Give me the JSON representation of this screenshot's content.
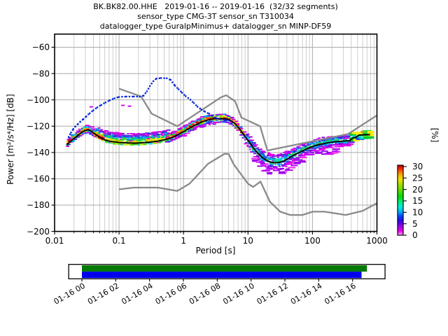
{
  "title": {
    "line1": "BK.BK82.00.HHE   2019-01-16 -- 2019-01-16  (32/32 segments)",
    "line2": "sensor_type CMG-3T sensor_sn T310034",
    "line3": "datalogger_type GuralpMinimus+ datalogger_sn MINP-DF59"
  },
  "chart_data": {
    "type": "heatmap",
    "title": "BK.BK82.00.HHE   2019-01-16 -- 2019-01-16  (32/32 segments)",
    "xlabel": "Period [s]",
    "ylabel": "Power [m²/s⁴/Hz] [dB]",
    "colorbar_label": "[%]",
    "xscale": "log",
    "xlim": [
      0.01,
      1000
    ],
    "ylim": [
      -200,
      -50
    ],
    "grid": true,
    "xticks": [
      {
        "v": 0.01,
        "label": "0.01"
      },
      {
        "v": 0.1,
        "label": "0.1"
      },
      {
        "v": 1,
        "label": "1"
      },
      {
        "v": 10,
        "label": "10"
      },
      {
        "v": 100,
        "label": "100"
      },
      {
        "v": 1000,
        "label": "1000"
      }
    ],
    "yticks": [
      {
        "v": -60,
        "label": "−60"
      },
      {
        "v": -80,
        "label": "−80"
      },
      {
        "v": -100,
        "label": "−100"
      },
      {
        "v": -120,
        "label": "−120"
      },
      {
        "v": -140,
        "label": "−140"
      },
      {
        "v": -160,
        "label": "−160"
      },
      {
        "v": -180,
        "label": "−180"
      },
      {
        "v": -200,
        "label": "−200"
      }
    ],
    "colorbar_ticks": [
      {
        "v": 0,
        "label": "0"
      },
      {
        "v": 5,
        "label": "5"
      },
      {
        "v": 10,
        "label": "10"
      },
      {
        "v": 15,
        "label": "15"
      },
      {
        "v": 20,
        "label": "20"
      },
      {
        "v": 25,
        "label": "25"
      },
      {
        "v": 30,
        "label": "30"
      }
    ],
    "colorbar_range": [
      0,
      30.6
    ],
    "colorbar_gradient": [
      [
        0.0,
        "#ffccff"
      ],
      [
        0.02,
        "#ff66ff"
      ],
      [
        0.06,
        "#ee00ee"
      ],
      [
        0.13,
        "#9900ee"
      ],
      [
        0.2,
        "#3300ee"
      ],
      [
        0.27,
        "#0044ff"
      ],
      [
        0.33,
        "#00aaff"
      ],
      [
        0.4,
        "#00eedd"
      ],
      [
        0.47,
        "#00ee88"
      ],
      [
        0.55,
        "#00dd00"
      ],
      [
        0.65,
        "#66dd00"
      ],
      [
        0.73,
        "#aadd00"
      ],
      [
        0.79,
        "#e8e800"
      ],
      [
        0.85,
        "#ffbb00"
      ],
      [
        0.9,
        "#ff7700"
      ],
      [
        0.95,
        "#ff2200"
      ],
      [
        1.0,
        "#bb0000"
      ]
    ],
    "series": {
      "mean_curve": [
        [
          0.0155,
          -134.2
        ],
        [
          0.017,
          -132.2
        ],
        [
          0.019,
          -130.3
        ],
        [
          0.021,
          -128.6
        ],
        [
          0.0235,
          -126.6
        ],
        [
          0.0265,
          -124.6
        ],
        [
          0.03,
          -123.2
        ],
        [
          0.033,
          -122.8
        ],
        [
          0.0365,
          -123.6
        ],
        [
          0.041,
          -125.4
        ],
        [
          0.046,
          -127.2
        ],
        [
          0.052,
          -128.8
        ],
        [
          0.06,
          -130.4
        ],
        [
          0.07,
          -131.3
        ],
        [
          0.082,
          -131.9
        ],
        [
          0.1,
          -132.3
        ],
        [
          0.13,
          -132.7
        ],
        [
          0.17,
          -132.9
        ],
        [
          0.22,
          -132.7
        ],
        [
          0.3,
          -132.1
        ],
        [
          0.4,
          -131.4
        ],
        [
          0.5,
          -130.4
        ],
        [
          0.6,
          -129.4
        ],
        [
          0.72,
          -127.9
        ],
        [
          0.85,
          -126.1
        ],
        [
          1.0,
          -124.2
        ],
        [
          1.2,
          -121.9
        ],
        [
          1.5,
          -119.3
        ],
        [
          1.9,
          -116.9
        ],
        [
          2.4,
          -115.3
        ],
        [
          3.0,
          -114.4
        ],
        [
          3.7,
          -114.1
        ],
        [
          4.5,
          -114.4
        ],
        [
          5.2,
          -115.3
        ],
        [
          6.0,
          -117.2
        ],
        [
          7.0,
          -120.6
        ],
        [
          8.0,
          -124.3
        ],
        [
          9.0,
          -127.9
        ],
        [
          10.5,
          -132.2
        ],
        [
          12,
          -136.2
        ],
        [
          14,
          -140.2
        ],
        [
          16.5,
          -143.6
        ],
        [
          19,
          -145.9
        ],
        [
          22,
          -147.1
        ],
        [
          26,
          -147.9
        ],
        [
          31,
          -147.6
        ],
        [
          37,
          -146.2
        ],
        [
          45,
          -143.6
        ],
        [
          55,
          -141.3
        ],
        [
          68,
          -139.1
        ],
        [
          85,
          -136.9
        ],
        [
          105,
          -135.1
        ],
        [
          130,
          -133.9
        ],
        [
          160,
          -132.9
        ],
        [
          200,
          -132.1
        ],
        [
          250,
          -131.6
        ],
        [
          310,
          -131.3
        ],
        [
          380,
          -131.0
        ],
        [
          420,
          -128.9
        ],
        [
          470,
          -128.5
        ],
        [
          520,
          -126.9
        ],
        [
          600,
          -126.6
        ],
        [
          700,
          -126.5
        ],
        [
          780,
          -126.5
        ]
      ],
      "dotted_reference_curve": [
        [
          0.0165,
          -128.2
        ],
        [
          0.018,
          -124.8
        ],
        [
          0.0195,
          -122.2
        ],
        [
          0.021,
          -120.2
        ],
        [
          0.023,
          -118.4
        ],
        [
          0.025,
          -116.6
        ],
        [
          0.028,
          -114.6
        ],
        [
          0.031,
          -112.6
        ],
        [
          0.035,
          -110.2
        ],
        [
          0.04,
          -107.9
        ],
        [
          0.046,
          -105.7
        ],
        [
          0.053,
          -103.8
        ],
        [
          0.062,
          -101.9
        ],
        [
          0.072,
          -100.3
        ],
        [
          0.085,
          -98.8
        ],
        [
          0.1,
          -97.8
        ],
        [
          0.13,
          -97.5
        ],
        [
          0.17,
          -97.5
        ],
        [
          0.21,
          -97.6
        ],
        [
          0.24,
          -96.8
        ],
        [
          0.27,
          -93.5
        ],
        [
          0.3,
          -89.5
        ],
        [
          0.34,
          -85.8
        ],
        [
          0.38,
          -83.8
        ],
        [
          0.45,
          -83.4
        ],
        [
          0.55,
          -83.6
        ],
        [
          0.63,
          -84.8
        ],
        [
          0.74,
          -89.3
        ],
        [
          0.84,
          -92.0
        ],
        [
          0.95,
          -94.6
        ],
        [
          1.08,
          -97.2
        ],
        [
          1.28,
          -99.9
        ],
        [
          1.45,
          -102.5
        ],
        [
          1.65,
          -105.2
        ],
        [
          1.9,
          -107.4
        ],
        [
          2.15,
          -109.0
        ],
        [
          2.5,
          -110.6
        ],
        [
          2.8,
          -112.2
        ],
        [
          3.2,
          -114.0
        ],
        [
          3.8,
          -114.9
        ],
        [
          4.5,
          -115.4
        ],
        [
          5.2,
          -115.8
        ]
      ],
      "nhnm": [
        [
          0.1,
          -91.5
        ],
        [
          0.22,
          -97.4
        ],
        [
          0.32,
          -110.5
        ],
        [
          0.8,
          -120.0
        ],
        [
          3.8,
          -98.1
        ],
        [
          4.6,
          -96.5
        ],
        [
          6.3,
          -101.0
        ],
        [
          7.9,
          -113.5
        ],
        [
          15.4,
          -120.0
        ],
        [
          20,
          -138.5
        ],
        [
          354.8,
          -126.0
        ],
        [
          1000,
          -111.8
        ]
      ],
      "nlnm": [
        [
          0.1,
          -168.0
        ],
        [
          0.17,
          -166.7
        ],
        [
          0.4,
          -166.7
        ],
        [
          0.8,
          -169.2
        ],
        [
          1.24,
          -163.7
        ],
        [
          2.4,
          -148.6
        ],
        [
          4.3,
          -141.1
        ],
        [
          5.0,
          -141.1
        ],
        [
          6.0,
          -149.0
        ],
        [
          10.0,
          -163.7
        ],
        [
          12.0,
          -166.2
        ],
        [
          15.6,
          -162.1
        ],
        [
          21.9,
          -177.5
        ],
        [
          31.6,
          -185.0
        ],
        [
          45,
          -187.5
        ],
        [
          70,
          -187.5
        ],
        [
          101,
          -185.0
        ],
        [
          154,
          -185.0
        ],
        [
          328,
          -187.5
        ],
        [
          600,
          -184.4
        ],
        [
          1000,
          -178.5
        ]
      ]
    },
    "histogram": {
      "seed": 7,
      "palette_hot": [
        "#d40000",
        "#ff2d00",
        "#ff7b00",
        "#ffd400",
        "#c3e800",
        "#52d400",
        "#00cc66",
        "#00c8e0",
        "#0092ff",
        "#1f3ce8",
        "#7a14e0",
        "#d400e0"
      ],
      "palette_cold": [
        "#1fc84d",
        "#00d4a8",
        "#00c2e8",
        "#0090ff",
        "#2a52e8",
        "#4527d9",
        "#7a14e0",
        "#9900e8",
        "#c200f0",
        "#e800e8"
      ],
      "palette_end": [
        [
          "#00cc22",
          0.45
        ],
        [
          "#33dd33",
          0.15
        ],
        [
          "#ffee00",
          0.12
        ],
        [
          "#00ddcc",
          0.09
        ],
        [
          "#2244ee",
          0.07
        ],
        [
          "#ff8800",
          0.07
        ],
        [
          "#cc00ee",
          0.05
        ]
      ],
      "red_accents": [
        "#e00000",
        "#ff5500"
      ],
      "regions": [
        {
          "p0": 0.0155,
          "p1": 0.045,
          "up": 1.6,
          "down": 3.2,
          "profile": "hot",
          "density": 0.95
        },
        {
          "p0": 0.045,
          "p1": 0.55,
          "up": 1.2,
          "down": 6.8,
          "profile": "mix",
          "density": 0.88
        },
        {
          "p0": 0.55,
          "p1": 2.3,
          "up": 2.2,
          "down": 3.6,
          "profile": "hot",
          "density": 0.92
        },
        {
          "p0": 2.3,
          "p1": 5.5,
          "up": 2.6,
          "down": 3.0,
          "profile": "hot",
          "density": 0.92
        },
        {
          "p0": 5.5,
          "p1": 9.0,
          "up": 2.0,
          "down": 2.6,
          "profile": "hot",
          "density": 0.9
        },
        {
          "p0": 9.0,
          "p1": 16,
          "up": 4.5,
          "down": 4.5,
          "profile": "cold_red",
          "density": 0.8
        },
        {
          "p0": 16,
          "p1": 40,
          "up": 5.0,
          "down": 6.0,
          "profile": "cold",
          "density": 0.75
        },
        {
          "p0": 40,
          "p1": 150,
          "up": 4.2,
          "down": 4.6,
          "profile": "cold",
          "density": 0.8
        },
        {
          "p0": 150,
          "p1": 400,
          "up": 3.6,
          "down": 3.8,
          "profile": "cold2",
          "density": 0.85
        },
        {
          "p0": 400,
          "p1": 800,
          "up": 3.0,
          "down": 3.6,
          "profile": "end",
          "density": 0.95
        }
      ],
      "outliers": [
        {
          "p0": 12,
          "p1": 260,
          "above0": 5.0,
          "above1": 9.5,
          "count": 60,
          "colors": [
            "#9900ee",
            "#bb00ff",
            "#8800dd",
            "#ee22ee"
          ],
          "w0": 5,
          "w1": 12
        },
        {
          "p0": 0.9,
          "p1": 3.2,
          "above0": 2.2,
          "above1": 4.0,
          "count": 12,
          "colors": [
            "#aa00ee",
            "#ee00ee"
          ],
          "w0": 3,
          "w1": 6
        }
      ],
      "extra_cells": [
        [
          0.037,
          -105.3,
          "#cc00dd"
        ],
        [
          0.115,
          -104.2,
          "#cc00dd"
        ],
        [
          0.145,
          -104.8,
          "#bb00ee"
        ]
      ]
    },
    "timeline": {
      "tick_labels": [
        "01-16 00",
        "01-16 02",
        "01-16 04",
        "01-16 06",
        "01-16 08",
        "01-16 10",
        "01-16 12",
        "01-16 14",
        "01-16 16"
      ],
      "tick_hours": [
        0,
        2,
        4,
        6,
        8,
        10,
        12,
        14,
        16
      ],
      "box_hours": [
        -0.78,
        17.92
      ],
      "bars": [
        {
          "name": "coverage-green",
          "color": "#067a06",
          "start_hour": 0,
          "end_hour": 16.85
        },
        {
          "name": "coverage-blue",
          "color": "#0000ee",
          "start_hour": 0,
          "end_hour": 16.53
        }
      ]
    },
    "colors": {
      "mean_line": "#000000",
      "dotted_line": "#0022dd",
      "noise_model": "#8a8a8a",
      "grid_major": "#ababab",
      "grid_minor": "#c9c9c9"
    }
  }
}
